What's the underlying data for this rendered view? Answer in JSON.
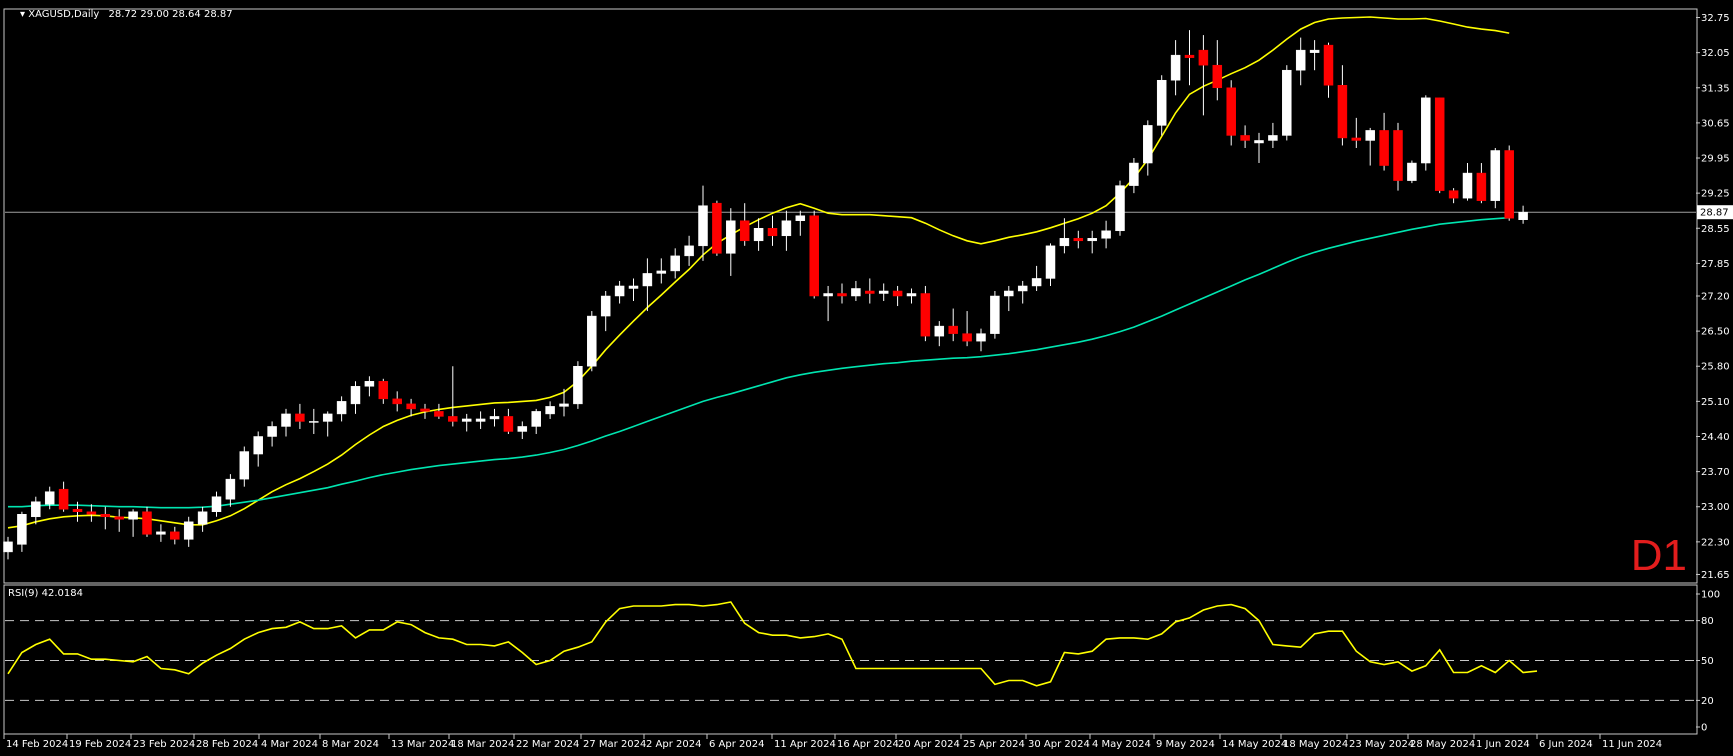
{
  "header": {
    "symbol": "XAGUSD,Daily",
    "ohlc": "28.72 29.00 28.64 28.87"
  },
  "timeframe_label": "D1",
  "rsi_header": "RSI(9) 42.0184",
  "current_price_label": "28.87",
  "colors": {
    "bg": "#000000",
    "frame": "#c8c8c8",
    "bull": "#ffffff",
    "bear": "#ff0000",
    "wick": "#ffffff",
    "ma_fast": "#ffff00",
    "ma_slow": "#00e5b0",
    "rsi": "#ffff00",
    "level": "#c8c8c8",
    "price_line": "#a0a0a0"
  },
  "chart_data": [
    {
      "type": "candlestick",
      "title": "XAGUSD,Daily",
      "ylim": [
        21.5,
        32.9
      ],
      "y_ticks": [
        "32.75",
        "32.05",
        "31.35",
        "30.65",
        "29.95",
        "29.25",
        "28.55",
        "27.85",
        "27.20",
        "26.50",
        "25.80",
        "25.10",
        "24.40",
        "23.70",
        "23.00",
        "22.30",
        "21.65"
      ],
      "x_ticks": [
        "14 Feb 2024",
        "19 Feb 2024",
        "23 Feb 2024",
        "28 Feb 2024",
        "4 Mar 2024",
        "8 Mar 2024",
        "13 Mar 2024",
        "18 Mar 2024",
        "22 Mar 2024",
        "27 Mar 2024",
        "2 Apr 2024",
        "6 Apr 2024",
        "11 Apr 2024",
        "16 Apr 2024",
        "20 Apr 2024",
        "25 Apr 2024",
        "30 Apr 2024",
        "4 May 2024",
        "9 May 2024",
        "14 May 2024",
        "18 May 2024",
        "23 May 2024",
        "28 May 2024",
        "1 Jun 2024",
        "6 Jun 2024",
        "11 Jun 2024"
      ],
      "current_price": 28.87,
      "ohlc": [
        [
          22.1,
          22.4,
          21.95,
          22.3
        ],
        [
          22.25,
          22.9,
          22.1,
          22.85
        ],
        [
          22.8,
          23.2,
          22.65,
          23.1
        ],
        [
          23.05,
          23.4,
          22.95,
          23.3
        ],
        [
          23.35,
          23.5,
          22.9,
          22.95
        ],
        [
          22.95,
          23.1,
          22.7,
          22.9
        ],
        [
          22.9,
          23.05,
          22.7,
          22.85
        ],
        [
          22.85,
          23.0,
          22.55,
          22.8
        ],
        [
          22.8,
          22.95,
          22.5,
          22.75
        ],
        [
          22.75,
          22.95,
          22.4,
          22.9
        ],
        [
          22.9,
          23.0,
          22.4,
          22.45
        ],
        [
          22.45,
          22.65,
          22.3,
          22.5
        ],
        [
          22.5,
          22.6,
          22.25,
          22.35
        ],
        [
          22.35,
          22.8,
          22.2,
          22.7
        ],
        [
          22.65,
          23.0,
          22.5,
          22.9
        ],
        [
          22.9,
          23.3,
          22.8,
          23.2
        ],
        [
          23.15,
          23.65,
          23.0,
          23.55
        ],
        [
          23.55,
          24.2,
          23.4,
          24.1
        ],
        [
          24.05,
          24.5,
          23.8,
          24.4
        ],
        [
          24.4,
          24.7,
          24.2,
          24.6
        ],
        [
          24.6,
          24.95,
          24.4,
          24.85
        ],
        [
          24.85,
          25.05,
          24.55,
          24.7
        ],
        [
          24.7,
          24.95,
          24.45,
          24.7
        ],
        [
          24.7,
          24.9,
          24.4,
          24.85
        ],
        [
          24.85,
          25.2,
          24.7,
          25.1
        ],
        [
          25.05,
          25.5,
          24.85,
          25.4
        ],
        [
          25.4,
          25.6,
          25.2,
          25.5
        ],
        [
          25.5,
          25.55,
          25.05,
          25.15
        ],
        [
          25.15,
          25.3,
          24.9,
          25.05
        ],
        [
          25.05,
          25.15,
          24.8,
          24.95
        ],
        [
          24.95,
          25.05,
          24.75,
          24.9
        ],
        [
          24.9,
          25.05,
          24.75,
          24.8
        ],
        [
          24.8,
          25.8,
          24.6,
          24.7
        ],
        [
          24.7,
          24.85,
          24.5,
          24.75
        ],
        [
          24.7,
          24.9,
          24.55,
          24.75
        ],
        [
          24.75,
          24.95,
          24.6,
          24.8
        ],
        [
          24.8,
          24.95,
          24.45,
          24.5
        ],
        [
          24.5,
          24.7,
          24.35,
          24.6
        ],
        [
          24.6,
          24.95,
          24.45,
          24.9
        ],
        [
          24.85,
          25.1,
          24.75,
          25.0
        ],
        [
          25.0,
          25.35,
          24.8,
          25.05
        ],
        [
          25.05,
          25.9,
          24.95,
          25.8
        ],
        [
          25.8,
          26.9,
          25.7,
          26.8
        ],
        [
          26.8,
          27.3,
          26.5,
          27.2
        ],
        [
          27.2,
          27.5,
          27.05,
          27.4
        ],
        [
          27.35,
          27.55,
          27.1,
          27.4
        ],
        [
          27.4,
          27.95,
          26.9,
          27.65
        ],
        [
          27.65,
          27.95,
          27.45,
          27.7
        ],
        [
          27.7,
          28.15,
          27.55,
          28.0
        ],
        [
          28.0,
          28.4,
          27.8,
          28.2
        ],
        [
          28.2,
          29.4,
          27.9,
          29.0
        ],
        [
          29.05,
          29.1,
          28.0,
          28.05
        ],
        [
          28.05,
          28.95,
          27.6,
          28.7
        ],
        [
          28.7,
          29.05,
          28.2,
          28.3
        ],
        [
          28.3,
          28.75,
          28.1,
          28.55
        ],
        [
          28.55,
          28.8,
          28.2,
          28.4
        ],
        [
          28.4,
          28.9,
          28.1,
          28.7
        ],
        [
          28.7,
          28.9,
          28.4,
          28.8
        ],
        [
          28.8,
          28.9,
          27.15,
          27.2
        ],
        [
          27.2,
          27.4,
          26.7,
          27.25
        ],
        [
          27.25,
          27.45,
          27.05,
          27.2
        ],
        [
          27.2,
          27.5,
          27.1,
          27.35
        ],
        [
          27.3,
          27.55,
          27.05,
          27.25
        ],
        [
          27.25,
          27.45,
          27.1,
          27.3
        ],
        [
          27.3,
          27.4,
          27.0,
          27.2
        ],
        [
          27.2,
          27.35,
          27.05,
          27.25
        ],
        [
          27.25,
          27.4,
          26.3,
          26.4
        ],
        [
          26.4,
          26.7,
          26.2,
          26.6
        ],
        [
          26.6,
          26.95,
          26.3,
          26.45
        ],
        [
          26.45,
          26.9,
          26.2,
          26.3
        ],
        [
          26.3,
          26.55,
          26.1,
          26.45
        ],
        [
          26.45,
          27.3,
          26.35,
          27.2
        ],
        [
          27.2,
          27.4,
          26.9,
          27.3
        ],
        [
          27.3,
          27.5,
          27.05,
          27.4
        ],
        [
          27.4,
          27.8,
          27.3,
          27.55
        ],
        [
          27.55,
          28.25,
          27.4,
          28.2
        ],
        [
          28.2,
          28.75,
          28.05,
          28.35
        ],
        [
          28.35,
          28.5,
          28.15,
          28.3
        ],
        [
          28.3,
          28.5,
          28.05,
          28.35
        ],
        [
          28.35,
          28.7,
          28.15,
          28.5
        ],
        [
          28.5,
          29.5,
          28.4,
          29.4
        ],
        [
          29.4,
          29.95,
          29.25,
          29.85
        ],
        [
          29.85,
          30.7,
          29.6,
          30.6
        ],
        [
          30.6,
          31.6,
          30.4,
          31.5
        ],
        [
          31.5,
          32.3,
          31.2,
          32.0
        ],
        [
          32.0,
          32.5,
          31.4,
          31.95
        ],
        [
          32.1,
          32.4,
          30.8,
          31.8
        ],
        [
          31.8,
          32.3,
          31.1,
          31.35
        ],
        [
          31.35,
          31.5,
          30.2,
          30.4
        ],
        [
          30.4,
          30.6,
          30.15,
          30.3
        ],
        [
          30.25,
          30.45,
          29.85,
          30.3
        ],
        [
          30.3,
          30.65,
          30.15,
          30.4
        ],
        [
          30.4,
          31.8,
          30.3,
          31.7
        ],
        [
          31.7,
          32.35,
          31.4,
          32.1
        ],
        [
          32.05,
          32.3,
          31.7,
          32.1
        ],
        [
          32.2,
          32.25,
          31.15,
          31.4
        ],
        [
          31.4,
          31.8,
          30.2,
          30.35
        ],
        [
          30.35,
          30.75,
          30.15,
          30.3
        ],
        [
          30.3,
          30.55,
          29.8,
          30.5
        ],
        [
          30.5,
          30.85,
          29.7,
          29.8
        ],
        [
          30.5,
          30.65,
          29.3,
          29.5
        ],
        [
          29.5,
          29.9,
          29.45,
          29.85
        ],
        [
          29.85,
          31.2,
          29.7,
          31.15
        ],
        [
          31.15,
          31.15,
          29.25,
          29.3
        ],
        [
          29.3,
          29.35,
          29.05,
          29.15
        ],
        [
          29.15,
          29.85,
          29.1,
          29.65
        ],
        [
          29.65,
          29.85,
          29.05,
          29.1
        ],
        [
          29.1,
          30.15,
          28.95,
          30.1
        ],
        [
          30.1,
          30.2,
          28.7,
          28.75
        ],
        [
          28.72,
          29.0,
          28.64,
          28.87
        ]
      ],
      "series": [
        {
          "type": "line",
          "values": [
            22.58,
            22.62,
            22.7,
            22.76,
            22.8,
            22.82,
            22.83,
            22.82,
            22.79,
            22.78,
            22.76,
            22.72,
            22.68,
            22.64,
            22.64,
            22.72,
            22.82,
            22.96,
            23.13,
            23.3,
            23.44,
            23.56,
            23.7,
            23.85,
            24.03,
            24.24,
            24.43,
            24.6,
            24.72,
            24.82,
            24.89,
            24.94,
            24.98,
            25.01,
            25.04,
            25.07,
            25.08,
            25.1,
            25.12,
            25.18,
            25.28,
            25.5,
            25.8,
            26.13,
            26.42,
            26.7,
            26.97,
            27.22,
            27.48,
            27.73,
            28.02,
            28.25,
            28.42,
            28.58,
            28.72,
            28.85,
            28.96,
            29.04,
            28.95,
            28.85,
            28.82,
            28.82,
            28.82,
            28.8,
            28.78,
            28.76,
            28.65,
            28.52,
            28.4,
            28.3,
            28.24,
            28.3,
            28.37,
            28.42,
            28.48,
            28.56,
            28.65,
            28.74,
            28.85,
            29.0,
            29.25,
            29.55,
            29.92,
            30.38,
            30.85,
            31.22,
            31.38,
            31.5,
            31.63,
            31.75,
            31.9,
            32.1,
            32.32,
            32.52,
            32.65,
            32.72,
            32.74,
            32.75,
            32.76,
            32.74,
            32.72,
            32.72,
            32.73,
            32.68,
            32.62,
            32.56,
            32.52,
            32.49,
            32.44
          ]
        },
        {
          "type": "line",
          "values": [
            23.0,
            23.0,
            23.02,
            23.03,
            23.03,
            23.03,
            23.02,
            23.01,
            23.0,
            23.0,
            22.99,
            22.98,
            22.98,
            22.98,
            22.99,
            23.01,
            23.05,
            23.09,
            23.13,
            23.18,
            23.23,
            23.28,
            23.33,
            23.38,
            23.45,
            23.51,
            23.58,
            23.64,
            23.69,
            23.74,
            23.78,
            23.82,
            23.85,
            23.88,
            23.91,
            23.94,
            23.96,
            23.99,
            24.03,
            24.08,
            24.14,
            24.22,
            24.31,
            24.41,
            24.5,
            24.6,
            24.7,
            24.8,
            24.9,
            25.0,
            25.1,
            25.18,
            25.25,
            25.33,
            25.41,
            25.49,
            25.57,
            25.63,
            25.68,
            25.72,
            25.76,
            25.79,
            25.82,
            25.85,
            25.87,
            25.9,
            25.92,
            25.94,
            25.96,
            25.97,
            25.99,
            26.02,
            26.05,
            26.09,
            26.13,
            26.18,
            26.23,
            26.28,
            26.34,
            26.41,
            26.49,
            26.58,
            26.69,
            26.8,
            26.92,
            27.04,
            27.16,
            27.28,
            27.4,
            27.52,
            27.63,
            27.75,
            27.87,
            27.98,
            28.07,
            28.15,
            28.22,
            28.29,
            28.35,
            28.41,
            28.47,
            28.53,
            28.58,
            28.63,
            28.66,
            28.69,
            28.72,
            28.74,
            28.76
          ]
        }
      ]
    },
    {
      "type": "line",
      "title": "RSI(9) 42.0184",
      "ylim": [
        0,
        100
      ],
      "levels": [
        20,
        50,
        80
      ],
      "y_ticks": [
        "100",
        "80",
        "50",
        "20",
        "0"
      ],
      "series": [
        {
          "type": "line",
          "values": [
            40,
            56,
            62,
            66,
            55,
            55,
            51,
            51,
            50,
            49,
            53,
            44,
            43,
            40,
            48,
            54,
            59,
            66,
            71,
            74,
            75,
            79,
            74,
            74,
            76,
            67,
            73,
            73,
            79,
            77,
            71,
            67,
            66,
            62,
            62,
            61,
            64,
            56,
            47,
            50,
            57,
            60,
            64,
            79,
            89,
            91,
            91,
            91,
            92,
            92,
            91,
            92,
            94,
            78,
            71,
            69,
            69,
            67,
            68,
            70,
            66,
            44,
            44,
            44,
            44,
            44,
            44,
            44,
            44,
            44,
            44,
            32,
            35,
            35,
            31,
            34,
            56,
            55,
            57,
            66,
            67,
            67,
            66,
            70,
            79,
            82,
            88,
            91,
            92,
            89,
            80,
            62,
            61,
            60,
            70,
            72,
            72,
            57,
            49,
            47,
            49,
            42,
            46,
            58,
            41,
            41,
            46,
            41,
            50,
            41,
            42
          ]
        }
      ]
    }
  ]
}
